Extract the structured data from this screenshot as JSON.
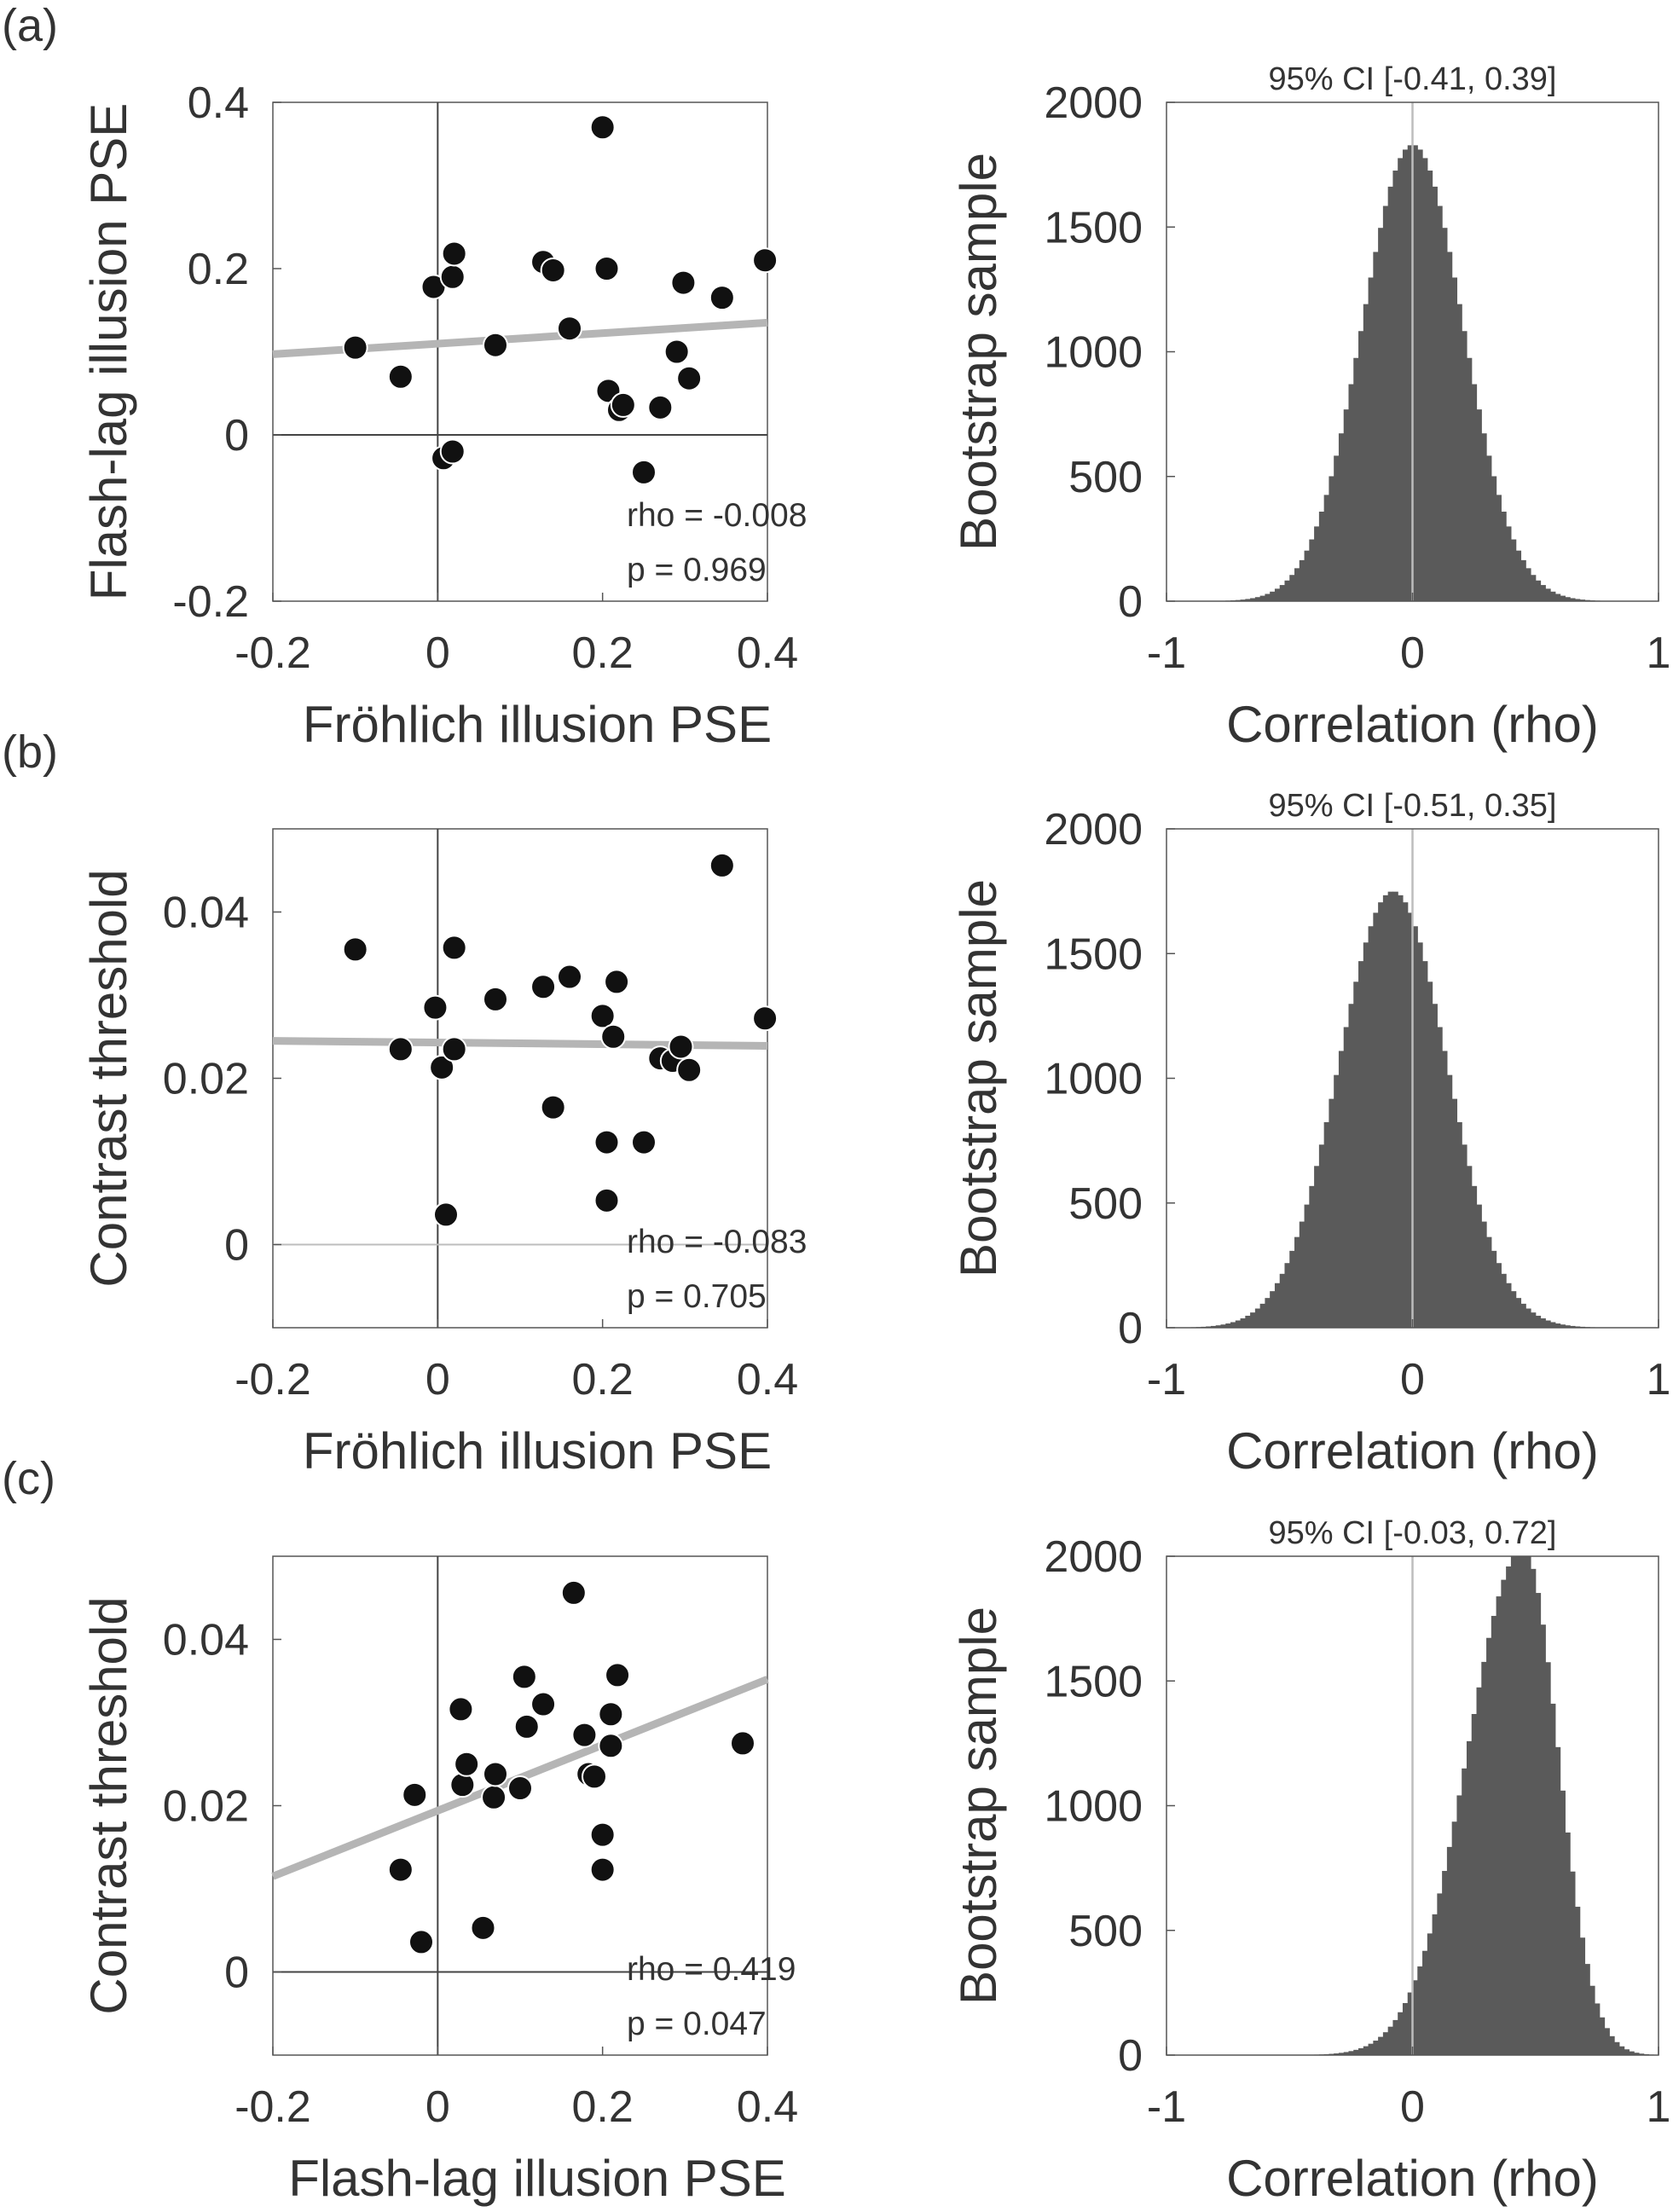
{
  "figure": {
    "panels": [
      {
        "label": "(a)",
        "scatter": {
          "xlabel": "Fröhlich illusion PSE",
          "ylabel": "Flash-lag illusion PSE",
          "stats": [
            "rho = -0.008",
            "p = 0.969"
          ]
        },
        "hist": {
          "title": "95% CI [-0.41, 0.39]",
          "xlabel": "Correlation (rho)",
          "ylabel": "Bootstrap sample"
        }
      },
      {
        "label": "(b)",
        "scatter": {
          "xlabel": "Fröhlich illusion PSE",
          "ylabel": "Contrast threshold",
          "stats": [
            "rho = -0.083",
            "p = 0.705"
          ]
        },
        "hist": {
          "title": "95% CI [-0.51, 0.35]",
          "xlabel": "Correlation (rho)",
          "ylabel": "Bootstrap sample"
        }
      },
      {
        "label": "(c)",
        "scatter": {
          "xlabel": "Flash-lag illusion PSE",
          "ylabel": "Contrast threshold",
          "stats": [
            "rho = 0.419",
            "p = 0.047"
          ]
        },
        "hist": {
          "title": "95% CI [-0.03, 0.72]",
          "xlabel": "Correlation (rho)",
          "ylabel": "Bootstrap sample"
        }
      }
    ]
  },
  "chart_data": [
    {
      "type": "scatter",
      "panel": "(a)",
      "xlabel": "Fröhlich illusion PSE",
      "ylabel": "Flash-lag illusion PSE",
      "xlim": [
        -0.2,
        0.4
      ],
      "ylim": [
        -0.2,
        0.4
      ],
      "xticks": [
        "-0.2",
        "0",
        "0.2",
        "0.4"
      ],
      "yticks": [
        "-0.2",
        "0",
        "0.2",
        "0.4"
      ],
      "points": [
        [
          -0.1,
          0.105
        ],
        [
          -0.045,
          0.07
        ],
        [
          -0.005,
          0.178
        ],
        [
          0.018,
          0.19
        ],
        [
          0.02,
          0.218
        ],
        [
          0.007,
          -0.028
        ],
        [
          0.018,
          -0.02
        ],
        [
          0.07,
          0.108
        ],
        [
          0.128,
          0.208
        ],
        [
          0.14,
          0.198
        ],
        [
          0.16,
          0.128
        ],
        [
          0.2,
          0.37
        ],
        [
          0.205,
          0.2
        ],
        [
          0.207,
          0.053
        ],
        [
          0.22,
          0.03
        ],
        [
          0.225,
          0.036
        ],
        [
          0.25,
          -0.045
        ],
        [
          0.27,
          0.033
        ],
        [
          0.29,
          0.1
        ],
        [
          0.298,
          0.183
        ],
        [
          0.305,
          0.068
        ],
        [
          0.345,
          0.165
        ],
        [
          0.397,
          0.21
        ]
      ],
      "fit": {
        "x": [
          -0.2,
          0.4
        ],
        "y": [
          0.097,
          0.135
        ]
      },
      "stats": [
        "rho = -0.008",
        "p = 0.969"
      ],
      "ref_lines": {
        "x": 0,
        "y": 0
      }
    },
    {
      "type": "bar",
      "panel": "(a)",
      "title": "95% CI [-0.41, 0.39]",
      "xlabel": "Correlation (rho)",
      "ylabel": "Bootstrap sample",
      "xlim": [
        -1,
        1
      ],
      "ylim": [
        0,
        2000
      ],
      "xticks": [
        "-1",
        "0",
        "1"
      ],
      "yticks": [
        "0",
        "500",
        "1000",
        "1500",
        "2000"
      ],
      "distribution": {
        "center": 0.0,
        "sd": 0.205,
        "peak": 1830,
        "skew": 0
      },
      "bin_width": 0.02,
      "vline": 0
    },
    {
      "type": "scatter",
      "panel": "(b)",
      "xlabel": "Fröhlich illusion PSE",
      "ylabel": "Contrast threshold",
      "xlim": [
        -0.2,
        0.4
      ],
      "ylim": [
        -0.01,
        0.05
      ],
      "xticks": [
        "-0.2",
        "0",
        "0.2",
        "0.4"
      ],
      "yticks": [
        "0",
        "0.02",
        "0.04"
      ],
      "points": [
        [
          -0.1,
          0.0355
        ],
        [
          -0.045,
          0.0235
        ],
        [
          -0.003,
          0.0285
        ],
        [
          0.005,
          0.0213
        ],
        [
          0.01,
          0.0036
        ],
        [
          0.02,
          0.0235
        ],
        [
          0.02,
          0.0357
        ],
        [
          0.07,
          0.0295
        ],
        [
          0.128,
          0.031
        ],
        [
          0.14,
          0.0165
        ],
        [
          0.16,
          0.0322
        ],
        [
          0.2,
          0.0275
        ],
        [
          0.205,
          0.0123
        ],
        [
          0.205,
          0.0053
        ],
        [
          0.213,
          0.025
        ],
        [
          0.217,
          0.0316
        ],
        [
          0.25,
          0.0123
        ],
        [
          0.27,
          0.0224
        ],
        [
          0.285,
          0.0221
        ],
        [
          0.295,
          0.0238
        ],
        [
          0.305,
          0.021
        ],
        [
          0.345,
          0.0456
        ],
        [
          0.397,
          0.0272
        ]
      ],
      "fit": {
        "x": [
          -0.2,
          0.4
        ],
        "y": [
          0.0245,
          0.0239
        ]
      },
      "stats": [
        "rho = -0.083",
        "p = 0.705"
      ],
      "ref_lines": {
        "x": 0,
        "y": 0
      }
    },
    {
      "type": "bar",
      "panel": "(b)",
      "title": "95% CI [-0.51, 0.35]",
      "xlabel": "Correlation (rho)",
      "ylabel": "Bootstrap sample",
      "xlim": [
        -1,
        1
      ],
      "ylim": [
        0,
        2000
      ],
      "xticks": [
        "-1",
        "0",
        "1"
      ],
      "yticks": [
        "0",
        "500",
        "1000",
        "1500",
        "2000"
      ],
      "distribution": {
        "center": -0.08,
        "sd": 0.22,
        "peak": 1750,
        "skew": 0
      },
      "bin_width": 0.02,
      "vline": 0
    },
    {
      "type": "scatter",
      "panel": "(c)",
      "xlabel": "Flash-lag illusion PSE",
      "ylabel": "Contrast threshold",
      "xlim": [
        -0.2,
        0.4
      ],
      "ylim": [
        -0.01,
        0.05
      ],
      "xticks": [
        "-0.2",
        "0",
        "0.2",
        "0.4"
      ],
      "yticks": [
        "0",
        "0.02",
        "0.04"
      ],
      "points": [
        [
          -0.045,
          0.0123
        ],
        [
          -0.028,
          0.0213
        ],
        [
          -0.02,
          0.0036
        ],
        [
          0.028,
          0.0316
        ],
        [
          0.03,
          0.0225
        ],
        [
          0.035,
          0.025
        ],
        [
          0.055,
          0.0053
        ],
        [
          0.068,
          0.021
        ],
        [
          0.07,
          0.0238
        ],
        [
          0.1,
          0.0221
        ],
        [
          0.105,
          0.0355
        ],
        [
          0.108,
          0.0295
        ],
        [
          0.128,
          0.0322
        ],
        [
          0.165,
          0.0456
        ],
        [
          0.178,
          0.0285
        ],
        [
          0.183,
          0.0238
        ],
        [
          0.19,
          0.0235
        ],
        [
          0.2,
          0.0165
        ],
        [
          0.2,
          0.0123
        ],
        [
          0.21,
          0.031
        ],
        [
          0.21,
          0.0272
        ],
        [
          0.218,
          0.0357
        ],
        [
          0.37,
          0.0275
        ]
      ],
      "fit": {
        "x": [
          -0.2,
          0.4
        ],
        "y": [
          0.0115,
          0.0352
        ]
      },
      "stats": [
        "rho = 0.419",
        "p = 0.047"
      ],
      "ref_lines": {
        "x": 0,
        "y": 0
      }
    },
    {
      "type": "bar",
      "panel": "(c)",
      "title": "95% CI [-0.03, 0.72]",
      "xlabel": "Correlation (rho)",
      "ylabel": "Bootstrap sample",
      "xlim": [
        -1,
        1
      ],
      "ylim": [
        0,
        2000
      ],
      "xticks": [
        "-1",
        "0",
        "1"
      ],
      "yticks": [
        "0",
        "500",
        "1000",
        "1500",
        "2000"
      ],
      "distribution": {
        "center": 0.45,
        "sd": 0.18,
        "peak": 2030,
        "skew": -0.75
      },
      "bin_width": 0.02,
      "vline": 0
    }
  ]
}
